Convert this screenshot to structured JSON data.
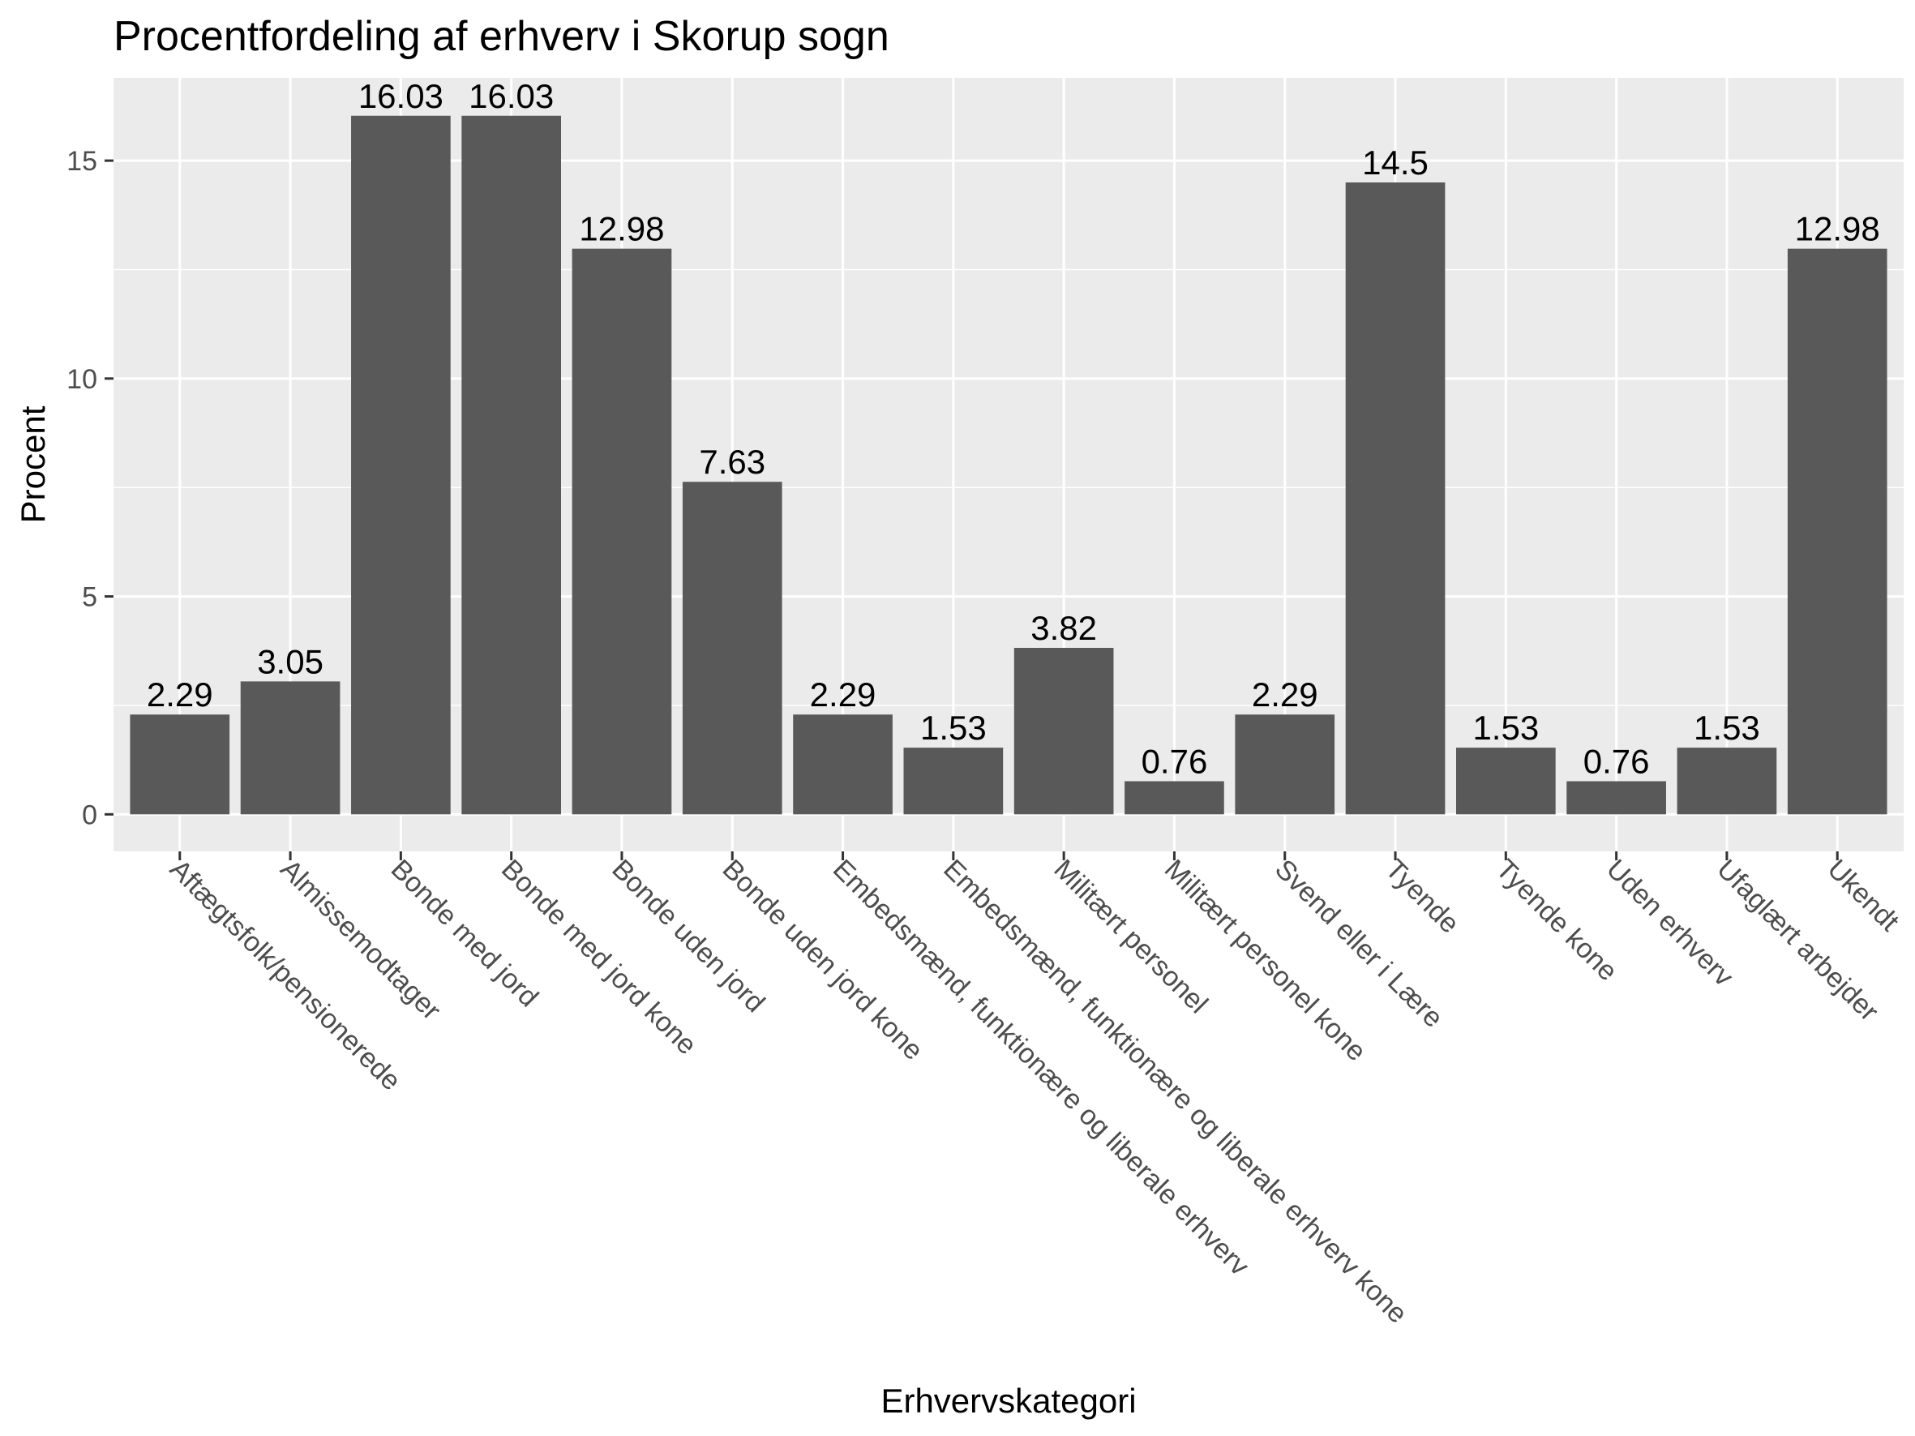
{
  "chart_data": {
    "type": "bar",
    "title": "Procentfordeling af erhverv i Skorup sogn",
    "xlabel": "Erhvervskategori",
    "ylabel": "Procent",
    "ylim": [
      -0.85,
      16.9
    ],
    "yticks": [
      0,
      5,
      10,
      15
    ],
    "ytick_labels": [
      "0",
      "5",
      "10",
      "15"
    ],
    "grid": true,
    "categories": [
      "Aftægtsfolk/pensionerede",
      "Almissemodtager",
      "Bonde med jord",
      "Bonde med jord kone",
      "Bonde uden jord",
      "Bonde uden jord kone",
      "Embedsmænd, funktionære og liberale erhverv",
      "Embedsmænd, funktionære og liberale erhverv kone",
      "Militært personel",
      "Militært personel kone",
      "Svend eller i Lære",
      "Tyende",
      "Tyende kone",
      "Uden erhverv",
      "Ufaglært arbejder",
      "Ukendt"
    ],
    "values": [
      2.29,
      3.05,
      16.03,
      16.03,
      12.98,
      7.63,
      2.29,
      1.53,
      3.82,
      0.76,
      2.29,
      14.5,
      1.53,
      0.76,
      1.53,
      12.98
    ],
    "data_labels": [
      "2.29",
      "3.05",
      "16.03",
      "16.03",
      "12.98",
      "7.63",
      "2.29",
      "1.53",
      "3.82",
      "0.76",
      "2.29",
      "14.5",
      "1.53",
      "0.76",
      "1.53",
      "12.98"
    ],
    "colors": {
      "bar": "#595959",
      "panel": "#ebebeb",
      "grid": "#ffffff",
      "tick_text": "#4d4d4d",
      "tick_mark": "#333333",
      "text": "#000000"
    }
  }
}
